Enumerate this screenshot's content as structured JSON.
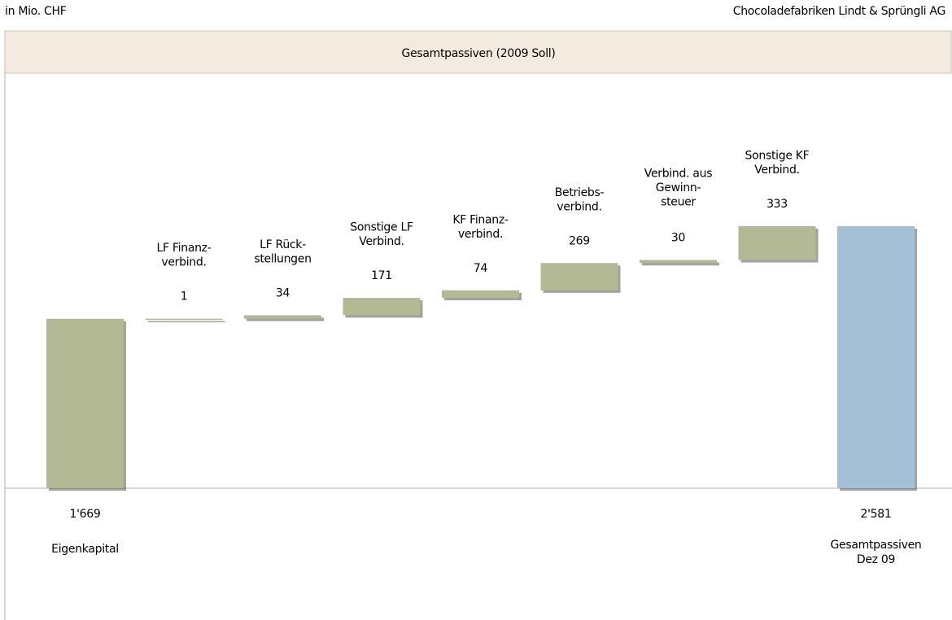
{
  "header": {
    "left": "in Mio. CHF",
    "right": "Chocoladefabriken Lindt & Sprüngli AG"
  },
  "chart_data": {
    "type": "waterfall",
    "title": "Gesamtpassiven (2009 Soll)",
    "categories": [
      [
        "Eigenkapital"
      ],
      [
        "LF Finanz-",
        "verbind."
      ],
      [
        "LF Rück-",
        "stellungen"
      ],
      [
        "Sonstige LF",
        "Verbind."
      ],
      [
        "KF Finanz-",
        "verbind."
      ],
      [
        "Betriebs-",
        "verbind."
      ],
      [
        "Verbind. aus",
        "Gewinn-",
        "steuer"
      ],
      [
        "Sonstige KF",
        "Verbind."
      ],
      [
        "Gesamtpassiven",
        "Dez 09"
      ]
    ],
    "measures": [
      "absolute",
      "relative",
      "relative",
      "relative",
      "relative",
      "relative",
      "relative",
      "relative",
      "total"
    ],
    "values": [
      1669,
      1,
      34,
      171,
      74,
      269,
      30,
      333,
      2581
    ],
    "value_labels": [
      "1'669",
      "1",
      "34",
      "171",
      "74",
      "269",
      "30",
      "333",
      "2'581"
    ],
    "color": "#b3b995",
    "total_color": "#a4bfd6"
  }
}
